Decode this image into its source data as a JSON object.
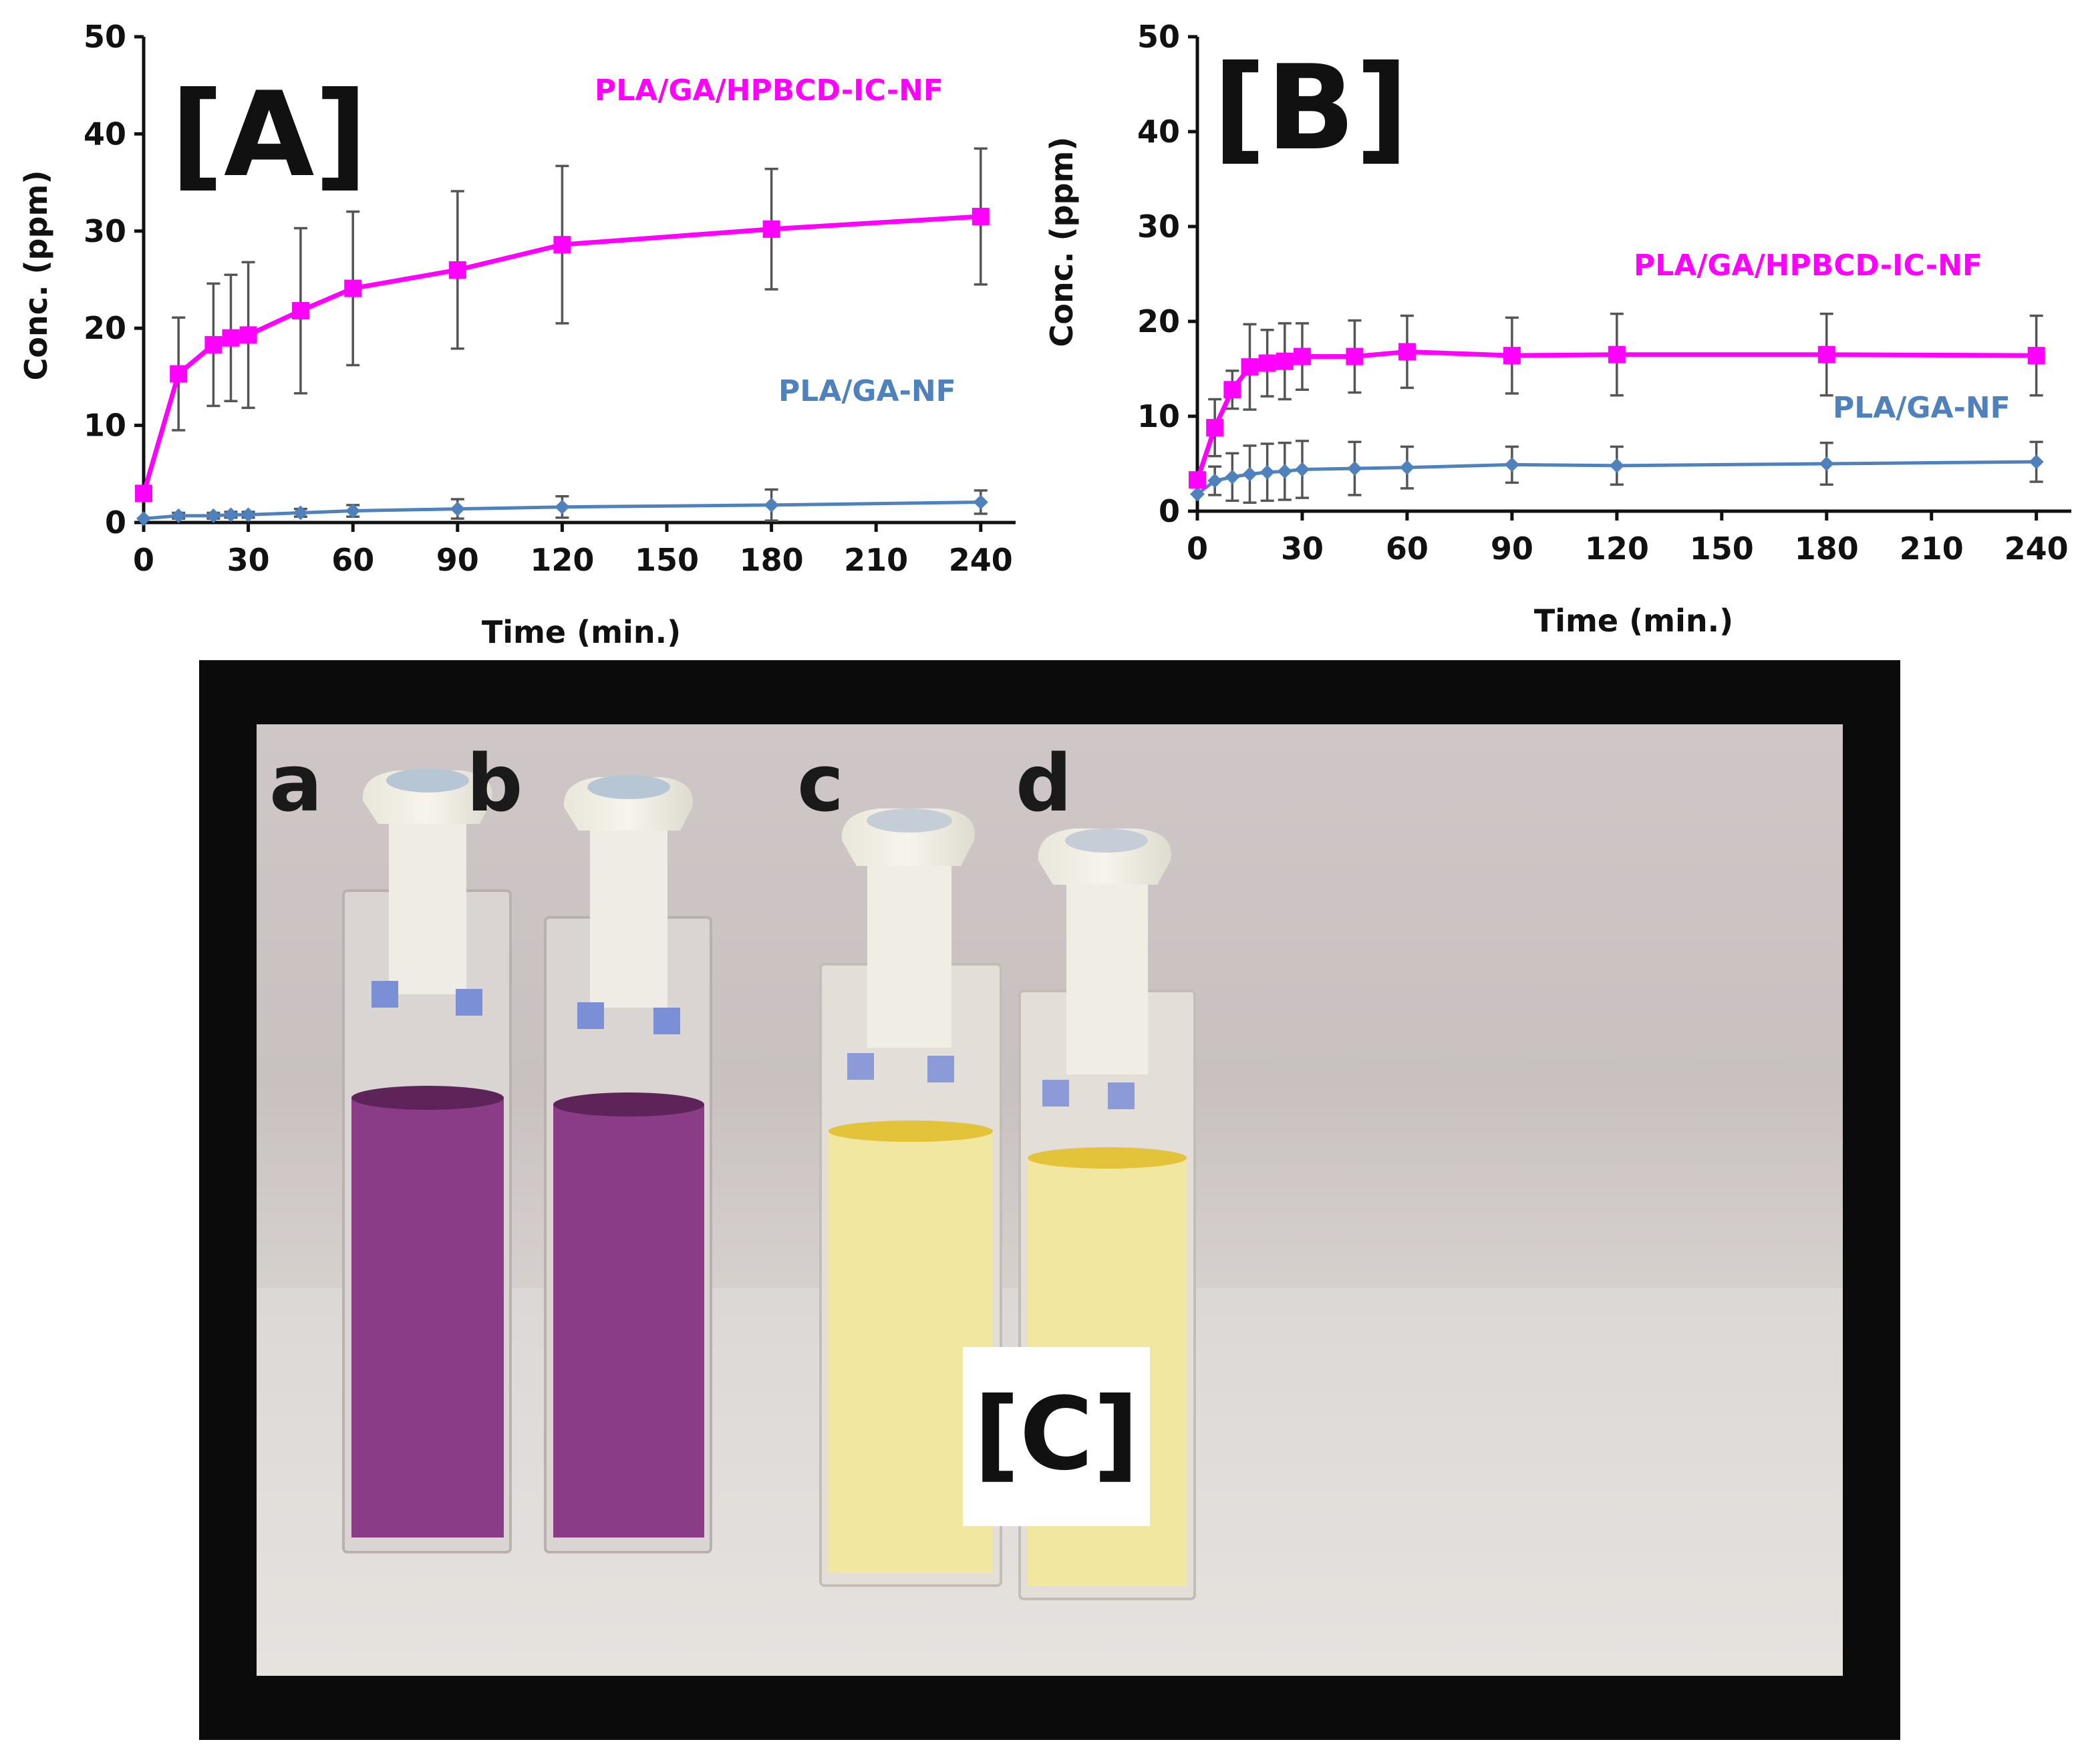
{
  "colors": {
    "ic_series": "#ff00ff",
    "ga_series": "#4f81bd",
    "photo_frame": "#0b0b0b",
    "purple_solution": "#8a3c86",
    "yellow_solution": "#f2e7a0"
  },
  "chart_data": [
    {
      "panel": "[A]",
      "type": "line",
      "xlabel": "Time (min.)",
      "ylabel": "Conc. (ppm)",
      "xlim": [
        0,
        250
      ],
      "ylim": [
        0,
        50
      ],
      "xticks": [
        0,
        30,
        60,
        90,
        120,
        150,
        180,
        210,
        240
      ],
      "yticks": [
        0,
        10,
        20,
        30,
        40,
        50
      ],
      "series": [
        {
          "name": "PLA/GA/HPBCD-IC-NF",
          "color": "#ff00ff",
          "marker": "square",
          "x": [
            0,
            10,
            20,
            25,
            30,
            45,
            60,
            90,
            120,
            180,
            240
          ],
          "y": [
            3,
            15.3,
            18.3,
            19,
            19.3,
            21.8,
            24.1,
            26,
            28.6,
            30.2,
            31.5
          ],
          "err": [
            0,
            5.8,
            6.3,
            6.5,
            7.5,
            8.5,
            7.9,
            8.1,
            8.1,
            6.2,
            7
          ]
        },
        {
          "name": "PLA/GA-NF",
          "color": "#4f81bd",
          "marker": "diamond",
          "x": [
            0,
            10,
            20,
            25,
            30,
            45,
            60,
            90,
            120,
            180,
            240
          ],
          "y": [
            0.4,
            0.7,
            0.7,
            0.8,
            0.8,
            1,
            1.2,
            1.4,
            1.6,
            1.8,
            2.1
          ],
          "err": [
            0,
            0.3,
            0.3,
            0.3,
            0.3,
            0.4,
            0.6,
            1,
            1.1,
            1.6,
            1.2
          ]
        }
      ]
    },
    {
      "panel": "[B]",
      "type": "line",
      "xlabel": "Time (min.)",
      "ylabel": "Conc. (ppm)",
      "xlim": [
        0,
        250
      ],
      "ylim": [
        0,
        50
      ],
      "xticks": [
        0,
        30,
        60,
        90,
        120,
        150,
        180,
        210,
        240
      ],
      "yticks": [
        0,
        10,
        20,
        30,
        40,
        50
      ],
      "series": [
        {
          "name": "PLA/GA/HPBCD-IC-NF",
          "color": "#ff00ff",
          "marker": "square",
          "x": [
            0,
            5,
            10,
            15,
            20,
            25,
            30,
            45,
            60,
            90,
            120,
            180,
            240
          ],
          "y": [
            3.3,
            8.8,
            12.8,
            15.2,
            15.6,
            15.8,
            16.3,
            16.3,
            16.8,
            16.4,
            16.5,
            16.5,
            16.4
          ],
          "err": [
            0,
            3,
            2,
            4.5,
            3.5,
            4,
            3.5,
            3.8,
            3.8,
            4,
            4.3,
            4.3,
            4.2
          ]
        },
        {
          "name": "PLA/GA-NF",
          "color": "#4f81bd",
          "marker": "diamond",
          "x": [
            0,
            5,
            10,
            15,
            20,
            25,
            30,
            45,
            60,
            90,
            120,
            180,
            240
          ],
          "y": [
            1.8,
            3.2,
            3.6,
            3.9,
            4.1,
            4.2,
            4.4,
            4.5,
            4.6,
            4.9,
            4.8,
            5,
            5.2
          ],
          "err": [
            0,
            1.5,
            2.5,
            3,
            3,
            3,
            3,
            2.8,
            2.2,
            1.9,
            2,
            2.2,
            2.1
          ]
        }
      ]
    }
  ],
  "photo": {
    "panel_label": "[C]",
    "cuvettes": [
      {
        "label": "a",
        "solution": "purple"
      },
      {
        "label": "b",
        "solution": "purple"
      },
      {
        "label": "c",
        "solution": "yellow"
      },
      {
        "label": "d",
        "solution": "yellow"
      }
    ]
  }
}
